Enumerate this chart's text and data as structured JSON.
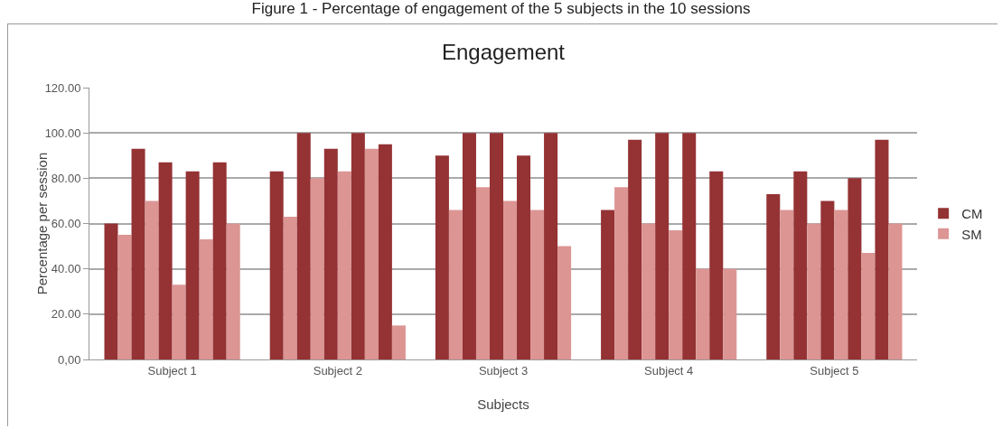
{
  "chart_data": {
    "type": "bar",
    "title": "Engagement",
    "xlabel": "Subjects",
    "ylabel": "Percentage per session",
    "annotations": [
      "Figure 1 - Percentage of engagement of the 5 subjects in the 10 sessions"
    ],
    "categories": [
      "Subject 1",
      "Subject 2",
      "Subject 3",
      "Subject 4",
      "Subject 5"
    ],
    "series": [
      {
        "name": "CM",
        "color": "#943234",
        "values": [
          60,
          83,
          90,
          66,
          73
        ]
      },
      {
        "name": "SM",
        "color": "#dc9593",
        "values": [
          55,
          63,
          66,
          76,
          66
        ]
      },
      {
        "color": "#943234",
        "values": [
          93,
          100,
          100,
          97,
          83
        ]
      },
      {
        "color": "#dc9593",
        "values": [
          70,
          80,
          76,
          60,
          60
        ]
      },
      {
        "color": "#943234",
        "values": [
          87,
          93,
          100,
          100,
          70
        ]
      },
      {
        "color": "#dc9593",
        "values": [
          33,
          83,
          70,
          57,
          66
        ]
      },
      {
        "color": "#943234",
        "values": [
          83,
          100,
          90,
          100,
          80
        ]
      },
      {
        "color": "#dc9593",
        "values": [
          53,
          93,
          66,
          40,
          47
        ]
      },
      {
        "color": "#943234",
        "values": [
          87,
          95,
          100,
          83,
          97
        ]
      },
      {
        "color": "#dc9593",
        "values": [
          60,
          15,
          50,
          40,
          60
        ]
      }
    ],
    "ylim": [
      0,
      120
    ],
    "yticks": [
      {
        "value": 0,
        "label": "0,00"
      },
      {
        "value": 20,
        "label": "20.00"
      },
      {
        "value": 40,
        "label": "40.00"
      },
      {
        "value": 60,
        "label": "60.00"
      },
      {
        "value": 80,
        "label": "80.00"
      },
      {
        "value": 100,
        "label": "100.00"
      },
      {
        "value": 120,
        "label": "120.00"
      }
    ],
    "grid": "y",
    "legend": "right"
  }
}
